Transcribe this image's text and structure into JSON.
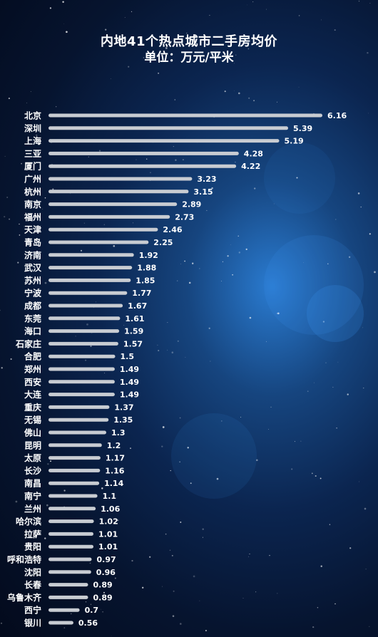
{
  "chart_data": {
    "type": "bar",
    "orientation": "horizontal",
    "title": "内地41个热点城市二手房均价",
    "subtitle": "单位：万元/平米",
    "categories": [
      "北京",
      "深圳",
      "上海",
      "三亚",
      "厦门",
      "广州",
      "杭州",
      "南京",
      "福州",
      "天津",
      "青岛",
      "济南",
      "武汉",
      "苏州",
      "宁波",
      "成都",
      "东莞",
      "海口",
      "石家庄",
      "合肥",
      "郑州",
      "西安",
      "大连",
      "重庆",
      "无锡",
      "佛山",
      "昆明",
      "太原",
      "长沙",
      "南昌",
      "南宁",
      "兰州",
      "哈尔滨",
      "拉萨",
      "贵阳",
      "呼和浩特",
      "沈阳",
      "长春",
      "乌鲁木齐",
      "西宁",
      "银川"
    ],
    "values": [
      6.16,
      5.39,
      5.19,
      4.28,
      4.22,
      3.23,
      3.15,
      2.89,
      2.73,
      2.46,
      2.25,
      1.92,
      1.88,
      1.85,
      1.77,
      1.67,
      1.61,
      1.59,
      1.57,
      1.5,
      1.49,
      1.49,
      1.49,
      1.37,
      1.35,
      1.3,
      1.2,
      1.17,
      1.16,
      1.14,
      1.1,
      1.06,
      1.02,
      1.01,
      1.01,
      0.97,
      0.96,
      0.89,
      0.89,
      0.7,
      0.56
    ],
    "value_labels": [
      "6.16",
      "5.39",
      "5.19",
      "4.28",
      "4.22",
      "3.23",
      "3.15",
      "2.89",
      "2.73",
      "2.46",
      "2.25",
      "1.92",
      "1.88",
      "1.85",
      "1.77",
      "1.67",
      "1.61",
      "1.59",
      "1.57",
      "1.5",
      "1.49",
      "1.49",
      "1.49",
      "1.37",
      "1.35",
      "1.3",
      "1.2",
      "1.17",
      "1.16",
      "1.14",
      "1.1",
      "1.06",
      "1.02",
      "1.01",
      "1.01",
      "0.97",
      "0.96",
      "0.89",
      "0.89",
      "0.7",
      "0.56"
    ],
    "xlim": [
      0,
      6.16
    ],
    "grid": false,
    "legend": "none",
    "colors": {
      "bar": "#c8ccd2",
      "text": "#ffffff"
    }
  }
}
